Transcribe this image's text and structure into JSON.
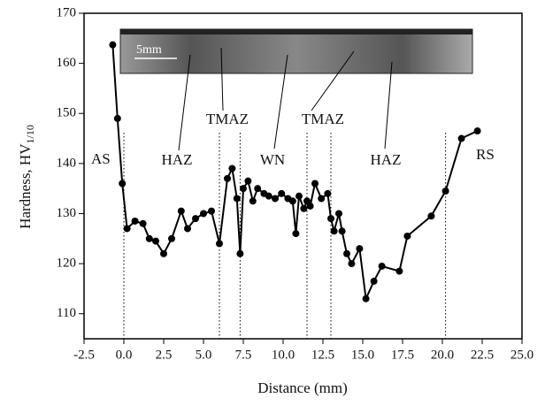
{
  "chart_data": {
    "type": "line",
    "xlabel": "Distance (mm)",
    "ylabel": "Hardness, HV",
    "ylabel_subscript": "1/10",
    "x": [
      -0.7,
      -0.4,
      -0.1,
      0.2,
      0.7,
      1.2,
      1.6,
      2.0,
      2.5,
      3.0,
      3.6,
      4.0,
      4.5,
      5.0,
      5.5,
      6.0,
      6.5,
      6.8,
      7.1,
      7.3,
      7.5,
      7.8,
      8.1,
      8.4,
      8.8,
      9.1,
      9.5,
      9.9,
      10.3,
      10.6,
      10.8,
      11.0,
      11.3,
      11.5,
      11.7,
      12.0,
      12.4,
      12.8,
      13.0,
      13.2,
      13.5,
      13.7,
      14.0,
      14.3,
      14.8,
      15.2,
      15.7,
      16.2,
      17.3,
      17.8,
      19.3,
      20.2,
      21.2,
      22.2
    ],
    "series": [
      {
        "color": "#000000",
        "values": [
          163.7,
          149,
          136,
          127,
          128.5,
          128,
          125,
          124.5,
          122,
          125,
          130.5,
          127,
          129,
          130,
          130.5,
          124,
          137,
          139,
          133,
          122,
          135,
          136.5,
          132.5,
          135,
          134,
          133.5,
          133,
          134,
          133,
          132.5,
          126,
          133.5,
          131,
          132.5,
          131.5,
          136,
          133,
          134,
          129,
          126.5,
          130,
          126.5,
          122,
          120,
          123,
          113,
          116.5,
          119.5,
          118.5,
          125.5,
          129.5,
          134.5,
          145,
          146.5
        ]
      }
    ],
    "xlim": [
      -2.5,
      25
    ],
    "xticks": [
      -2.5,
      {
        "value": 0,
        "label": "0.0"
      },
      2.5,
      {
        "value": 5,
        "label": "5.0"
      },
      7.5,
      {
        "value": 10,
        "label": "10.0"
      },
      12.5,
      {
        "value": 15,
        "label": "15.0"
      },
      17.5,
      {
        "value": 20,
        "label": "20.0"
      },
      22.5,
      {
        "value": 25,
        "label": "25.0"
      }
    ],
    "ylim": [
      105,
      170
    ],
    "yticks": [
      110,
      120,
      130,
      140,
      150,
      160,
      170
    ],
    "boundaries": [
      0,
      6,
      7.3,
      11.5,
      13,
      20.2
    ],
    "annotations": [
      "AS",
      "HAZ",
      "TMAZ",
      "WN",
      "TMAZ",
      "HAZ",
      "RS"
    ],
    "inset_scale": "5mm"
  }
}
